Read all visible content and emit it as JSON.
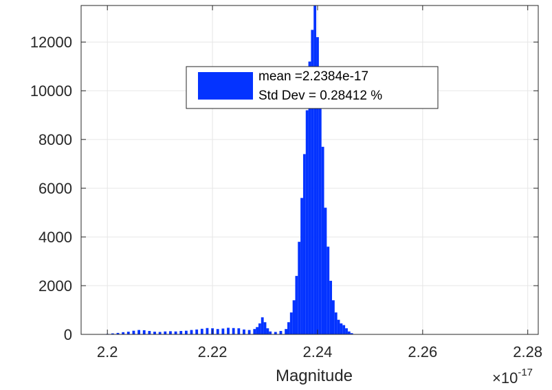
{
  "chart_data": {
    "type": "bar",
    "title": "",
    "xlabel": "Magnitude",
    "ylabel": "",
    "x_exponent_label": "×10",
    "x_exponent": "-17",
    "xlim": [
      2.195,
      2.282
    ],
    "ylim": [
      0,
      13500
    ],
    "x_ticks": [
      2.2,
      2.22,
      2.24,
      2.26,
      2.28
    ],
    "x_tick_labels": [
      "2.2",
      "2.22",
      "2.24",
      "2.26",
      "2.28"
    ],
    "y_ticks": [
      0,
      2000,
      4000,
      6000,
      8000,
      10000,
      12000
    ],
    "y_tick_labels": [
      "0",
      "2000",
      "4000",
      "6000",
      "8000",
      "10000",
      "12000"
    ],
    "grid": true,
    "bar_color": "#0433ff",
    "legend": {
      "placement": "top-center",
      "lines": [
        "mean =2.2384e-17",
        "Std Dev = 0.28412 %"
      ]
    },
    "x": [
      2.2,
      2.201,
      2.202,
      2.203,
      2.204,
      2.205,
      2.206,
      2.207,
      2.208,
      2.209,
      2.21,
      2.211,
      2.212,
      2.213,
      2.214,
      2.215,
      2.216,
      2.217,
      2.218,
      2.219,
      2.22,
      2.221,
      2.222,
      2.223,
      2.224,
      2.225,
      2.226,
      2.227,
      2.228,
      2.2285,
      2.229,
      2.2295,
      2.23,
      2.2305,
      2.231,
      2.232,
      2.233,
      2.234,
      2.2345,
      2.235,
      2.2355,
      2.236,
      2.2365,
      2.237,
      2.2375,
      2.238,
      2.2385,
      2.239,
      2.2395,
      2.24,
      2.2405,
      2.241,
      2.2415,
      2.242,
      2.2425,
      2.243,
      2.2435,
      2.244,
      2.2445,
      2.245,
      2.2455,
      2.246,
      2.2465,
      2.247
    ],
    "values": [
      20,
      40,
      60,
      90,
      110,
      150,
      180,
      170,
      140,
      110,
      100,
      120,
      130,
      120,
      140,
      150,
      180,
      200,
      230,
      260,
      250,
      220,
      240,
      270,
      260,
      250,
      200,
      180,
      220,
      300,
      450,
      700,
      500,
      250,
      120,
      100,
      140,
      220,
      500,
      900,
      1400,
      2400,
      3800,
      5600,
      7400,
      9200,
      11200,
      12500,
      13500,
      12200,
      10200,
      7700,
      5200,
      3600,
      2200,
      1400,
      900,
      600,
      450,
      380,
      250,
      120,
      50,
      10
    ],
    "bin_width": 0.0005
  }
}
